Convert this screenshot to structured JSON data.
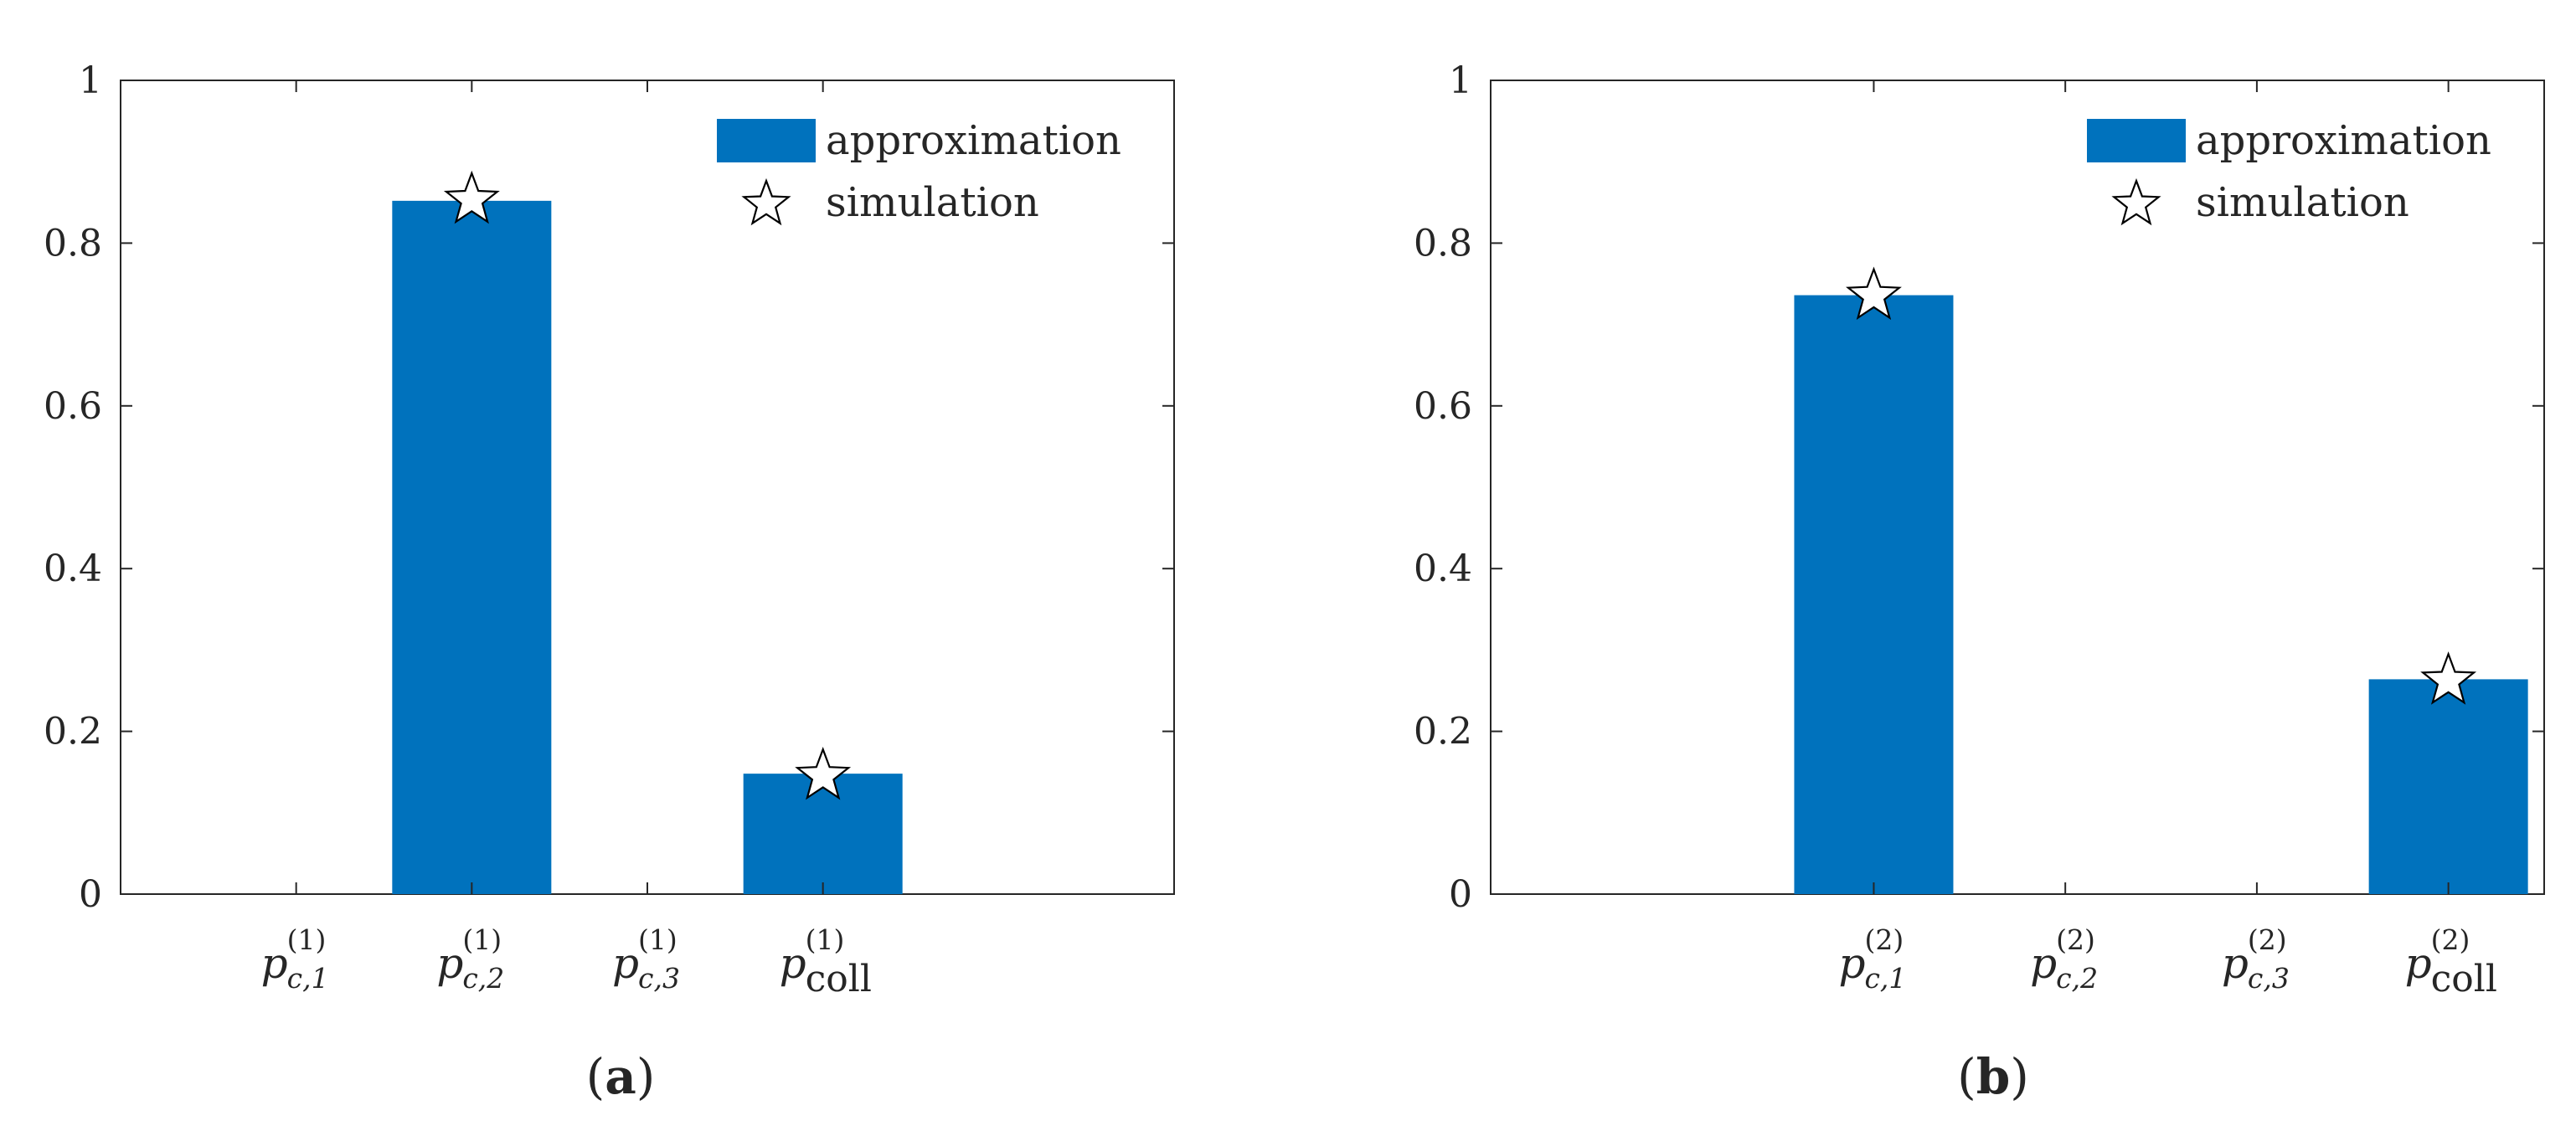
{
  "colors": {
    "bar": "#0072BD",
    "axis": "#262626",
    "star_edge": "#000000",
    "star_fill": "#ffffff"
  },
  "legend": {
    "approximation": "approximation",
    "simulation": "simulation",
    "approximation_icon": "blue-rect-swatch",
    "simulation_icon": "star-icon"
  },
  "chart_data": [
    {
      "type": "bar",
      "panel_label": "a",
      "ylim": [
        0,
        1
      ],
      "yticks": [
        "0",
        "0.2",
        "0.4",
        "0.6",
        "0.8",
        "1"
      ],
      "xlim": [
        0,
        6
      ],
      "categories": [
        {
          "pos": 1,
          "sym": "p",
          "sub": "c,1",
          "sup": "(1)"
        },
        {
          "pos": 2,
          "sym": "p",
          "sub": "c,2",
          "sup": "(1)"
        },
        {
          "pos": 3,
          "sym": "p",
          "sub": "c,3",
          "sup": "(1)"
        },
        {
          "pos": 4,
          "sym": "p",
          "sub": "coll",
          "sup": "(1)"
        }
      ],
      "series": [
        {
          "name": "approximation",
          "values": [
            0,
            0.852,
            0,
            0.148
          ]
        },
        {
          "name": "simulation",
          "values": [
            null,
            0.853,
            null,
            0.145
          ]
        }
      ],
      "legend_position": "top-right"
    },
    {
      "type": "bar",
      "panel_label": "b",
      "ylim": [
        0,
        1
      ],
      "yticks": [
        "0",
        "0.2",
        "0.4",
        "0.6",
        "0.8",
        "1"
      ],
      "xlim": [
        -1,
        4.5
      ],
      "categories": [
        {
          "pos": 1,
          "sym": "p",
          "sub": "c,1",
          "sup": "(2)"
        },
        {
          "pos": 2,
          "sym": "p",
          "sub": "c,2",
          "sup": "(2)"
        },
        {
          "pos": 3,
          "sym": "p",
          "sub": "c,3",
          "sup": "(2)"
        },
        {
          "pos": 4,
          "sym": "p",
          "sub": "coll",
          "sup": "(2)"
        }
      ],
      "series": [
        {
          "name": "approximation",
          "values": [
            0.736,
            0,
            0,
            0.264
          ]
        },
        {
          "name": "simulation",
          "values": [
            0.735,
            null,
            null,
            0.262
          ]
        }
      ],
      "legend_position": "top-right"
    }
  ]
}
